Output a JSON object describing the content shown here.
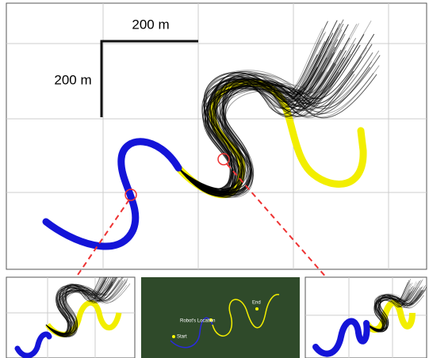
{
  "scale_bar": {
    "horizontal": "200 m",
    "vertical": "200 m"
  },
  "satellite": {
    "robot": "Robot's Location",
    "start": "Start",
    "end": "End"
  }
}
